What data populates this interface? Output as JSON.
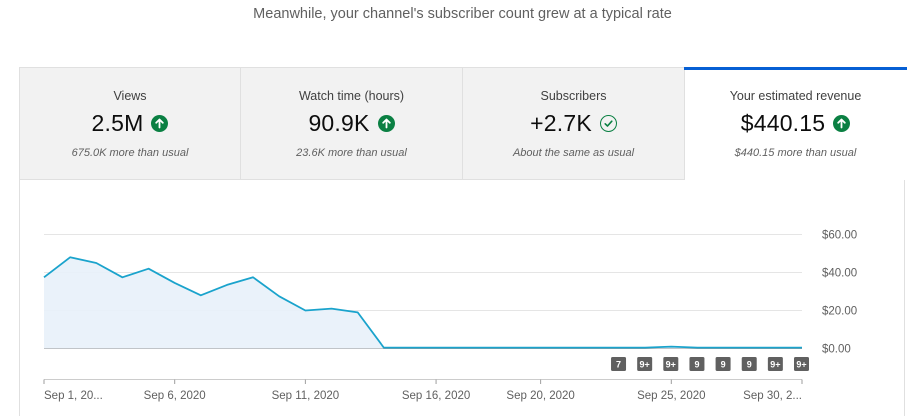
{
  "headline": "Meanwhile, your channel's subscriber count grew at a typical rate",
  "tabs": [
    {
      "label": "Views",
      "value": "2.5M",
      "icon": "arrow-up-icon",
      "subtext": "675.0K more than usual",
      "active": false
    },
    {
      "label": "Watch time (hours)",
      "value": "90.9K",
      "icon": "arrow-up-icon",
      "subtext": "23.6K more than usual",
      "active": false
    },
    {
      "label": "Subscribers",
      "value": "+2.7K",
      "icon": "check-circle-icon",
      "subtext": "About the same as usual",
      "active": false
    },
    {
      "label": "Your estimated revenue",
      "value": "$440.15",
      "icon": "arrow-up-icon",
      "subtext": "$440.15 more than usual",
      "active": true
    }
  ],
  "colors": {
    "accent": "#065fd4",
    "positive": "#0b8043",
    "line": "#1aa3cc",
    "fill": "#e8f1fa"
  },
  "chart_data": {
    "type": "area",
    "y_tick_labels": [
      "$60.00",
      "$40.00",
      "$20.00",
      "$0.00"
    ],
    "ylim": [
      0,
      60
    ],
    "x_tick_labels": [
      {
        "label": "Sep 1, 20...",
        "day": 1
      },
      {
        "label": "Sep 6, 2020",
        "day": 6
      },
      {
        "label": "Sep 11, 2020",
        "day": 11
      },
      {
        "label": "Sep 16, 2020",
        "day": 16
      },
      {
        "label": "Sep 20, 2020",
        "day": 20
      },
      {
        "label": "Sep 25, 2020",
        "day": 25
      },
      {
        "label": "Sep 30, 2...",
        "day": 30
      }
    ],
    "x": [
      "Sep 1",
      "Sep 2",
      "Sep 3",
      "Sep 4",
      "Sep 5",
      "Sep 6",
      "Sep 7",
      "Sep 8",
      "Sep 9",
      "Sep 10",
      "Sep 11",
      "Sep 12",
      "Sep 13",
      "Sep 14",
      "Sep 15",
      "Sep 16",
      "Sep 17",
      "Sep 18",
      "Sep 19",
      "Sep 20",
      "Sep 21",
      "Sep 22",
      "Sep 23",
      "Sep 24",
      "Sep 25",
      "Sep 26",
      "Sep 27",
      "Sep 28",
      "Sep 29",
      "Sep 30"
    ],
    "values": [
      37.5,
      48,
      45,
      37.5,
      42,
      34.5,
      28,
      33.5,
      37.5,
      27.5,
      20,
      21,
      19,
      0.5,
      0.5,
      0.5,
      0.5,
      0.5,
      0.5,
      0.5,
      0.5,
      0.5,
      0.5,
      0.5,
      1,
      0.5,
      0.5,
      0.5,
      0.5,
      0.5
    ],
    "annotations": [
      {
        "label": "7",
        "day": 23
      },
      {
        "label": "9+",
        "day": 24
      },
      {
        "label": "9+",
        "day": 25
      },
      {
        "label": "9",
        "day": 26
      },
      {
        "label": "9",
        "day": 27
      },
      {
        "label": "9",
        "day": 28
      },
      {
        "label": "9+",
        "day": 29
      },
      {
        "label": "9+",
        "day": 30
      }
    ]
  }
}
